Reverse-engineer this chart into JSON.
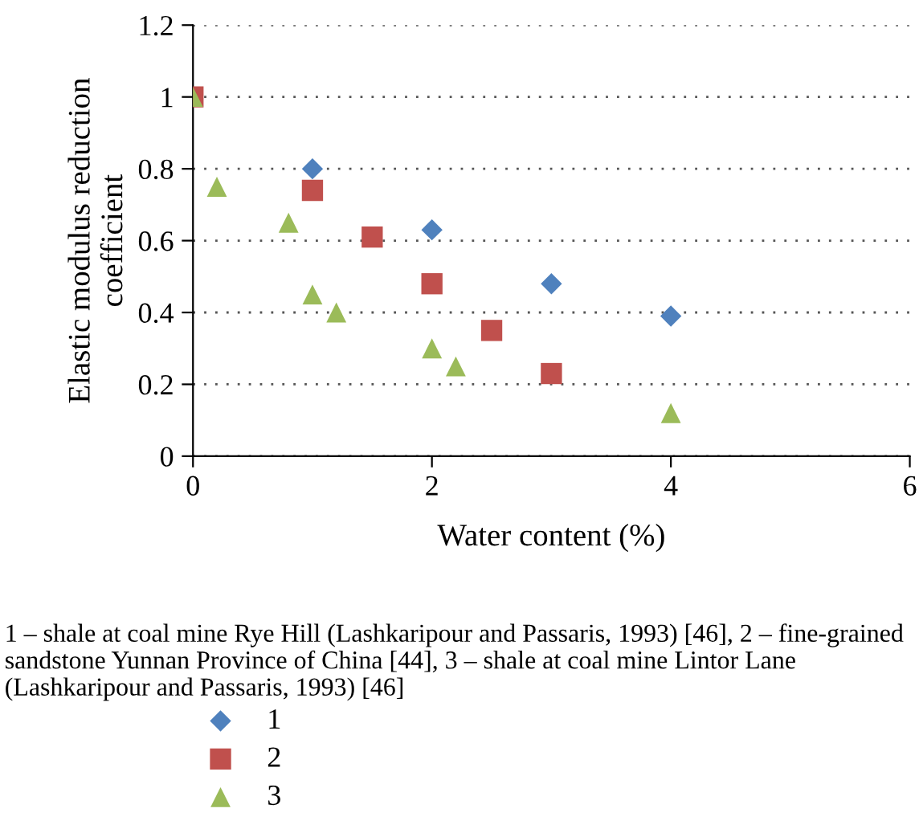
{
  "chart_data": {
    "type": "scatter",
    "xlabel": "Water content (%)",
    "ylabel": "Elastic modulus reduction\ncoefficient",
    "annotations": [
      "1 – shale at coal mine Rye Hill (Lashkaripour and Passaris, 1993) [46], 2 – fine-grained sandstone Yunnan Province of China [44], 3 – shale at coal mine Lintor Lane (Lashkaripour and Passaris, 1993) [46]"
    ],
    "series": [
      {
        "name": "1",
        "color": "#4f81bd",
        "marker": "diamond",
        "x": [
          1,
          2,
          3,
          4
        ],
        "values": [
          0.8,
          0.63,
          0.48,
          0.39
        ]
      },
      {
        "name": "2",
        "color": "#c0504d",
        "marker": "square",
        "x": [
          0,
          1,
          1.5,
          2,
          2.5,
          3
        ],
        "values": [
          1.0,
          0.74,
          0.61,
          0.48,
          0.35,
          0.23
        ]
      },
      {
        "name": "3",
        "color": "#9bbb59",
        "marker": "triangle",
        "x": [
          0,
          0.2,
          0.8,
          1,
          1.2,
          2,
          2.2,
          4
        ],
        "values": [
          1.0,
          0.75,
          0.65,
          0.45,
          0.4,
          0.3,
          0.25,
          0.12
        ]
      }
    ],
    "xlim": [
      0,
      6
    ],
    "xticks": [
      0,
      2,
      4,
      6
    ],
    "ylim": [
      0,
      1.2
    ],
    "yticks": [
      0,
      0.2,
      0.4,
      0.6,
      0.8,
      1,
      1.2
    ],
    "grid": "y",
    "legend": "bottom"
  }
}
